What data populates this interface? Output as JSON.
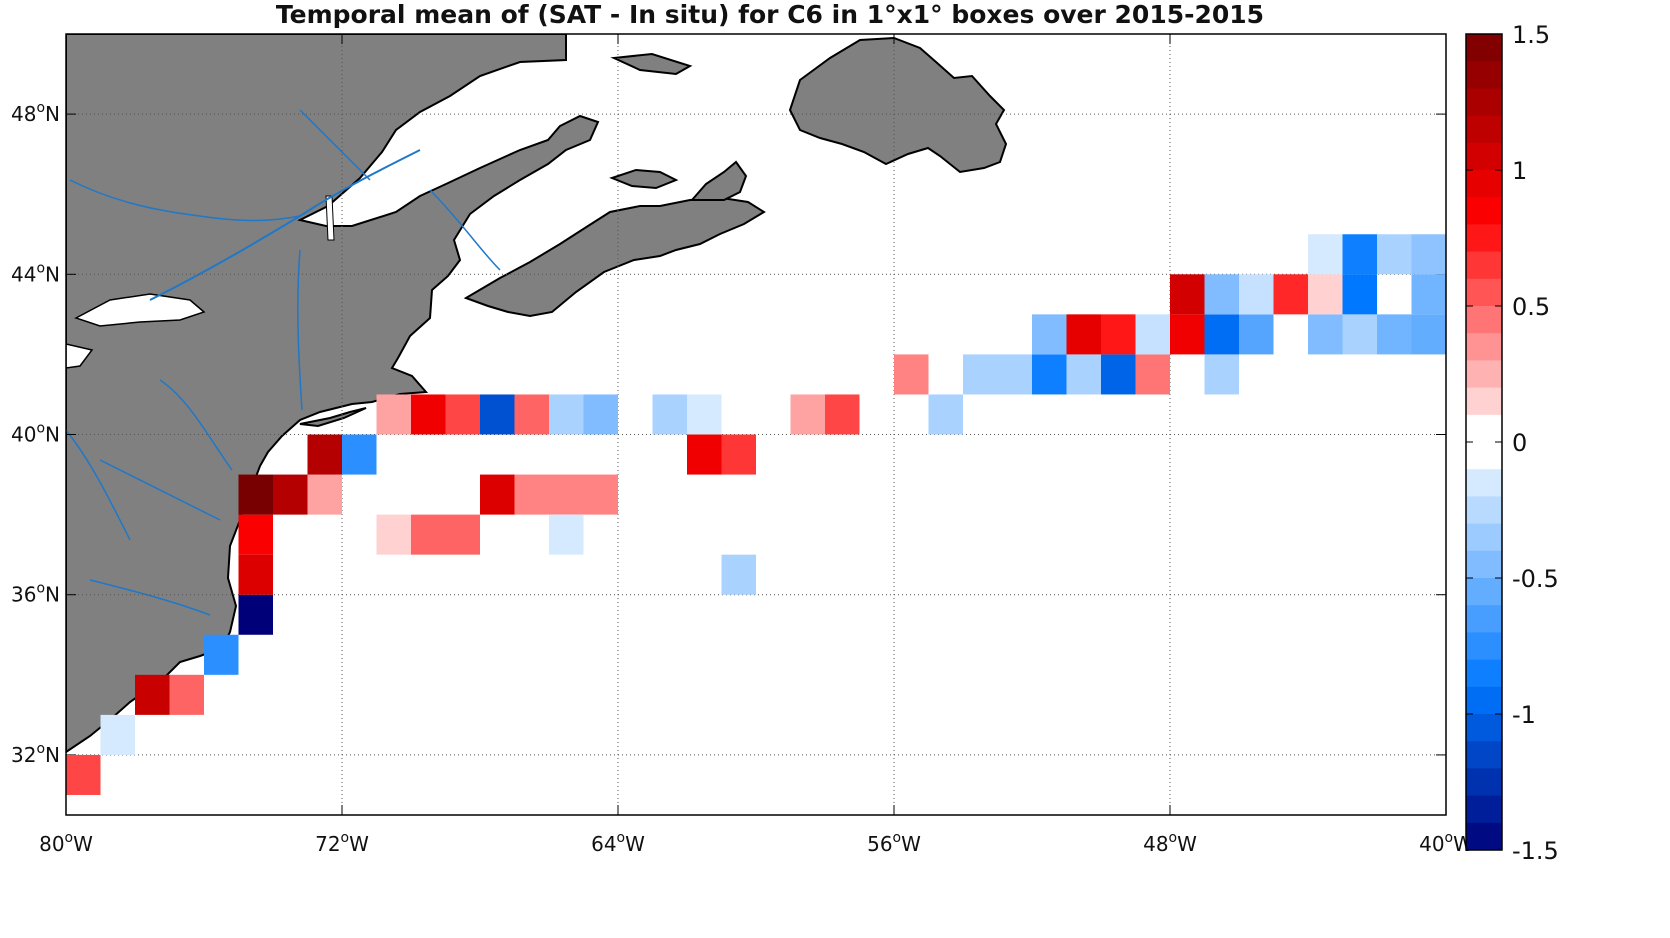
{
  "chart_data": {
    "type": "heatmap",
    "title": "Temporal mean of (SAT - In situ) for C6 in 1°x1° boxes over 2015-2015",
    "xlim": [
      -80,
      -40
    ],
    "ylim": [
      30.5,
      50
    ],
    "x_ticks": [
      -80,
      -72,
      -64,
      -56,
      -48,
      -40
    ],
    "x_tick_labels": [
      {
        "num": "80",
        "deg": "o",
        "dir": "W"
      },
      {
        "num": "72",
        "deg": "o",
        "dir": "W"
      },
      {
        "num": "64",
        "deg": "o",
        "dir": "W"
      },
      {
        "num": "56",
        "deg": "o",
        "dir": "W"
      },
      {
        "num": "48",
        "deg": "o",
        "dir": "W"
      },
      {
        "num": "40",
        "deg": "o",
        "dir": "W"
      }
    ],
    "y_ticks": [
      32,
      36,
      40,
      44,
      48
    ],
    "y_tick_labels": [
      {
        "num": "32",
        "deg": "o",
        "dir": "N"
      },
      {
        "num": "36",
        "deg": "o",
        "dir": "N"
      },
      {
        "num": "40",
        "deg": "o",
        "dir": "N"
      },
      {
        "num": "44",
        "deg": "o",
        "dir": "N"
      },
      {
        "num": "48",
        "deg": "o",
        "dir": "N"
      }
    ],
    "grid": true,
    "colorbar": {
      "range": [
        -1.5,
        1.5
      ],
      "ticks": [
        1.5,
        1,
        0.5,
        0,
        -0.5,
        -1,
        -1.5
      ],
      "tick_labels": [
        "1.5",
        "1",
        "0.5",
        "0",
        "-0.5",
        "-1",
        "-1.5"
      ]
    },
    "cells": [
      {
        "lon": -80,
        "lat": 31,
        "value": 0.6
      },
      {
        "lon": -79,
        "lat": 32,
        "value": -0.15
      },
      {
        "lon": -78,
        "lat": 33,
        "value": 1.1
      },
      {
        "lon": -77,
        "lat": 33,
        "value": 0.5
      },
      {
        "lon": -76,
        "lat": 34,
        "value": -0.75
      },
      {
        "lon": -75,
        "lat": 35,
        "value": -1.5
      },
      {
        "lon": -75,
        "lat": 36,
        "value": 1.0
      },
      {
        "lon": -75,
        "lat": 37,
        "value": 0.85
      },
      {
        "lon": -75,
        "lat": 38,
        "value": 1.5
      },
      {
        "lon": -74,
        "lat": 38,
        "value": 1.2
      },
      {
        "lon": -73,
        "lat": 38,
        "value": 0.3
      },
      {
        "lon": -73,
        "lat": 39,
        "value": 1.2
      },
      {
        "lon": -72,
        "lat": 39,
        "value": -0.75
      },
      {
        "lon": -71,
        "lat": 37,
        "value": 0.15
      },
      {
        "lon": -70,
        "lat": 37,
        "value": 0.5
      },
      {
        "lon": -69,
        "lat": 37,
        "value": 0.5
      },
      {
        "lon": -68,
        "lat": 38,
        "value": 1.0
      },
      {
        "lon": -67,
        "lat": 38,
        "value": 0.4
      },
      {
        "lon": -66,
        "lat": 38,
        "value": 0.4
      },
      {
        "lon": -65,
        "lat": 38,
        "value": 0.4
      },
      {
        "lon": -66,
        "lat": 37,
        "value": -0.15
      },
      {
        "lon": -71,
        "lat": 40,
        "value": 0.3
      },
      {
        "lon": -70,
        "lat": 40,
        "value": 0.9
      },
      {
        "lon": -69,
        "lat": 40,
        "value": 0.6
      },
      {
        "lon": -68,
        "lat": 40,
        "value": -1.1
      },
      {
        "lon": -67,
        "lat": 40,
        "value": 0.5
      },
      {
        "lon": -66,
        "lat": 40,
        "value": -0.3
      },
      {
        "lon": -65,
        "lat": 40,
        "value": -0.45
      },
      {
        "lon": -63,
        "lat": 40,
        "value": -0.3
      },
      {
        "lon": -62,
        "lat": 40,
        "value": -0.15
      },
      {
        "lon": -62,
        "lat": 39,
        "value": 0.9
      },
      {
        "lon": -61,
        "lat": 39,
        "value": 0.65
      },
      {
        "lon": -61,
        "lat": 36,
        "value": -0.3
      },
      {
        "lon": -59,
        "lat": 40,
        "value": 0.3
      },
      {
        "lon": -58,
        "lat": 40,
        "value": 0.6
      },
      {
        "lon": -55,
        "lat": 40,
        "value": -0.3
      },
      {
        "lon": -56,
        "lat": 41,
        "value": 0.4
      },
      {
        "lon": -54,
        "lat": 41,
        "value": -0.3
      },
      {
        "lon": -53,
        "lat": 41,
        "value": -0.3
      },
      {
        "lon": -52,
        "lat": 41,
        "value": -0.85
      },
      {
        "lon": -51,
        "lat": 41,
        "value": -0.3
      },
      {
        "lon": -50,
        "lat": 41,
        "value": -1.0
      },
      {
        "lon": -49,
        "lat": 41,
        "value": 0.45
      },
      {
        "lon": -47,
        "lat": 41,
        "value": -0.3
      },
      {
        "lon": -52,
        "lat": 42,
        "value": -0.45
      },
      {
        "lon": -51,
        "lat": 42,
        "value": 0.95
      },
      {
        "lon": -50,
        "lat": 42,
        "value": 0.75
      },
      {
        "lon": -49,
        "lat": 42,
        "value": -0.2
      },
      {
        "lon": -48,
        "lat": 42,
        "value": 0.9
      },
      {
        "lon": -47,
        "lat": 42,
        "value": -0.95
      },
      {
        "lon": -46,
        "lat": 42,
        "value": -0.6
      },
      {
        "lon": -44,
        "lat": 42,
        "value": -0.45
      },
      {
        "lon": -43,
        "lat": 42,
        "value": -0.3
      },
      {
        "lon": -42,
        "lat": 42,
        "value": -0.5
      },
      {
        "lon": -41,
        "lat": 42,
        "value": -0.55
      },
      {
        "lon": -48,
        "lat": 43,
        "value": 1.05
      },
      {
        "lon": -47,
        "lat": 43,
        "value": -0.45
      },
      {
        "lon": -46,
        "lat": 43,
        "value": -0.2
      },
      {
        "lon": -45,
        "lat": 43,
        "value": 0.7
      },
      {
        "lon": -44,
        "lat": 43,
        "value": 0.15
      },
      {
        "lon": -43,
        "lat": 43,
        "value": -0.9
      },
      {
        "lon": -41,
        "lat": 43,
        "value": -0.5
      },
      {
        "lon": -44,
        "lat": 44,
        "value": -0.15
      },
      {
        "lon": -43,
        "lat": 44,
        "value": -0.85
      },
      {
        "lon": -42,
        "lat": 44,
        "value": -0.3
      },
      {
        "lon": -41,
        "lat": 44,
        "value": -0.4
      }
    ]
  }
}
